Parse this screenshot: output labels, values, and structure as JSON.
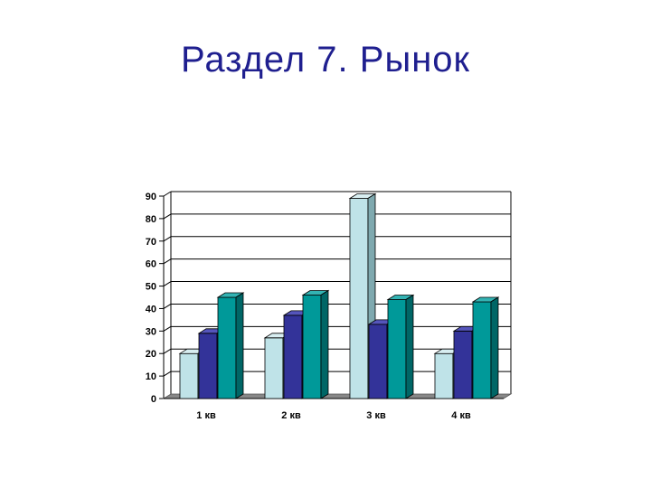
{
  "slide": {
    "title": "Раздел 7. Рынок"
  },
  "colors": {
    "title": "#1f1f8f",
    "series": [
      "#bfe3e8",
      "#333399",
      "#009999"
    ],
    "series_top": [
      "#d8eef1",
      "#5555bb",
      "#33b3b3"
    ],
    "series_side": [
      "#7fa9af",
      "#1f1f66",
      "#006666"
    ],
    "floor": "#888888",
    "grid": "#000000"
  },
  "chart_data": {
    "type": "bar",
    "categories": [
      "1 кв",
      "2 кв",
      "3 кв",
      "4 кв"
    ],
    "series": [
      {
        "values": [
          20,
          27,
          89,
          20
        ]
      },
      {
        "values": [
          29,
          37,
          33,
          30
        ]
      },
      {
        "values": [
          45,
          46,
          44,
          43
        ]
      }
    ],
    "y_ticks": [
      "0",
      "10",
      "20",
      "30",
      "40",
      "50",
      "60",
      "70",
      "80",
      "90"
    ],
    "ylim": [
      0,
      90
    ],
    "grid": true,
    "legend": "none",
    "style": "3d-columns"
  }
}
